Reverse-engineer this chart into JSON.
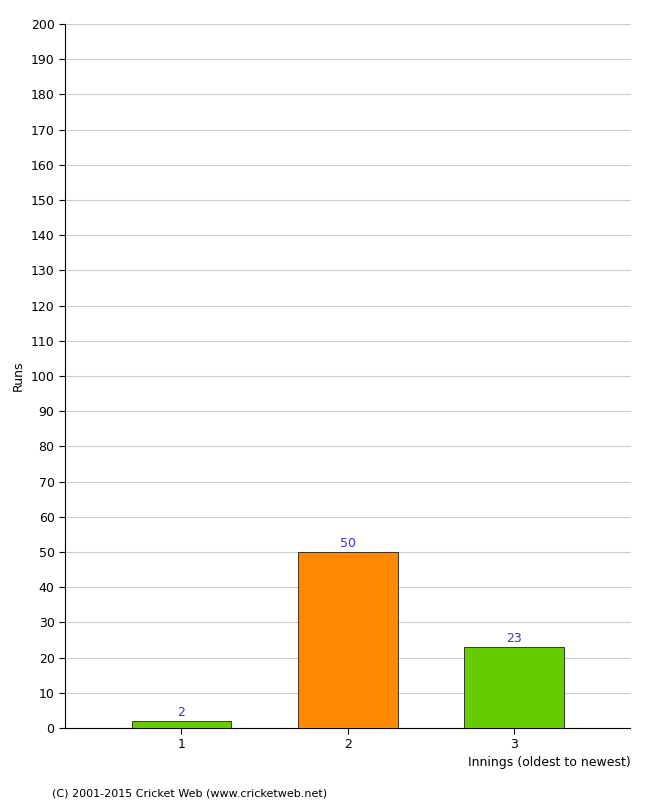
{
  "categories": [
    "1",
    "2",
    "3"
  ],
  "values": [
    2,
    50,
    23
  ],
  "bar_colors": [
    "#66cc00",
    "#ff8800",
    "#66cc00"
  ],
  "ylabel": "Runs",
  "xlabel": "Innings (oldest to newest)",
  "ylim": [
    0,
    200
  ],
  "yticks": [
    0,
    10,
    20,
    30,
    40,
    50,
    60,
    70,
    80,
    90,
    100,
    110,
    120,
    130,
    140,
    150,
    160,
    170,
    180,
    190,
    200
  ],
  "value_label_color": "#3333cc",
  "footer": "(C) 2001-2015 Cricket Web (www.cricketweb.net)",
  "background_color": "#ffffff",
  "grid_color": "#cccccc",
  "bar_width": 0.6
}
